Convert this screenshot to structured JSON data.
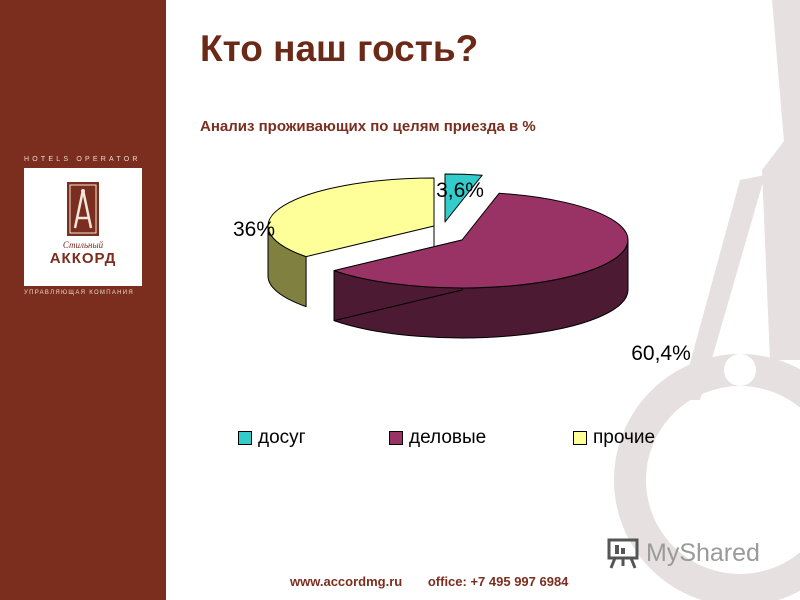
{
  "sidebar": {
    "operator_label": "HOTELS OPERATOR",
    "logo_script": "Стильный",
    "logo_name": "АККОРД",
    "company_label": "УПРАВЛЯЮЩАЯ КОМПАНИЯ"
  },
  "header": {
    "title": "Кто наш гость?",
    "subtitle": "Анализ проживающих по целям приезда в %"
  },
  "chart_data": {
    "type": "pie",
    "title": "",
    "categories": [
      "досуг",
      "деловые",
      "прочие"
    ],
    "values": [
      3.6,
      60.4,
      36
    ],
    "data_labels": [
      "3,6%",
      "60,4%",
      "36%"
    ],
    "colors": [
      "#33cccc",
      "#993366",
      "#ffff99"
    ],
    "side_colors": [
      "#1f8080",
      "#4d1a33",
      "#808040"
    ],
    "legend": "bottom",
    "three_d": true
  },
  "footer": {
    "website": "www.accordmg.ru",
    "office": "office: +7 495 997 6984"
  },
  "watermark_brand": "MyShared"
}
